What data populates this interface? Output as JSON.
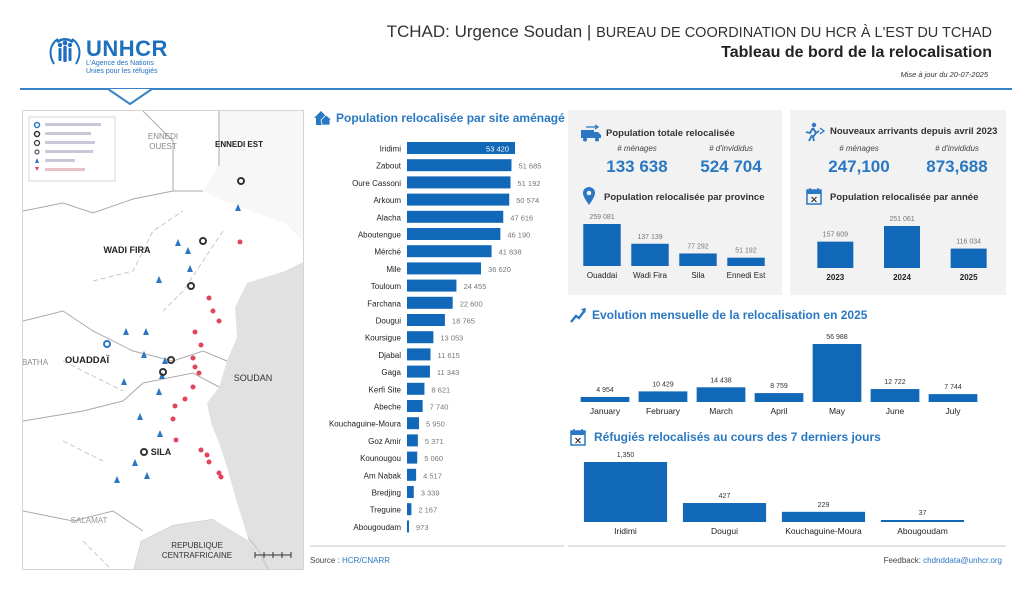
{
  "header": {
    "title_main": "TCHAD: Urgence Soudan",
    "title_sep": " | ",
    "title_sub": "BUREAU DE COORDINATION DU HCR À L'EST DU TCHAD",
    "subtitle": "Tableau de bord de la relocalisation",
    "updated": "Mise à jour du 20-07-2025"
  },
  "logo": {
    "word": "UNHCR",
    "tagline_1": "L'Agence des Nations",
    "tagline_2": "Unies pour les réfugiés"
  },
  "map": {
    "labels": {
      "ennedi_ouest": "ENNEDI OUEST",
      "ennedi_est": "ENNEDI EST",
      "wadi_fira": "WADI FIRA",
      "ouaddai": "OUADDAÏ",
      "batha": "BATHA",
      "soudan": "SOUDAN",
      "sila": "SILA",
      "salamat": "SALAMAT",
      "rca_1": "REPUBLIQUE",
      "rca_2": "CENTRAFRICAINE"
    }
  },
  "colors": {
    "accent": "#2a78c2",
    "bar": "#1167b8",
    "panel": "#f2f2f2",
    "marker": "#e2445c"
  },
  "footer": {
    "source_label": "Source : ",
    "source_value": "HCR/CNARR",
    "feedback_label": "Feedback: ",
    "feedback_value": "chdnddata@unhcr.org"
  },
  "kpis": {
    "total": {
      "title": "Population totale relocalisée",
      "households_label": "# ménages",
      "households": "133 638",
      "individuals_label": "# d'invididus",
      "individuals": "524 704"
    },
    "new_arrivals": {
      "title": "Nouveaux arrivants depuis avril 2023",
      "households_label": "# ménages",
      "households": "247,100",
      "individuals_label": "# d'invididus",
      "individuals": "873,688"
    }
  },
  "chart_data": [
    {
      "id": "by_site",
      "type": "bar",
      "orientation": "horizontal",
      "title": "Population relocalisée par site aménagé",
      "categories": [
        "Iridimi",
        "Zabout",
        "Oure Cassoni",
        "Arkoum",
        "Alacha",
        "Aboutengue",
        "Mérché",
        "Mile",
        "Touloum",
        "Farchana",
        "Dougui",
        "Koursigue",
        "Djabal",
        "Gaga",
        "Kerfi Site",
        "Abeche",
        "Kouchaguine-Moura",
        "Goz Amir",
        "Kounougou",
        "Am Nabak",
        "Bredjing",
        "Treguine",
        "Abougoudam"
      ],
      "values": [
        53420,
        51685,
        51192,
        50574,
        47616,
        46190,
        41838,
        36620,
        24455,
        22600,
        18765,
        13053,
        11615,
        11343,
        8621,
        7740,
        5950,
        5371,
        5060,
        4517,
        3339,
        2167,
        973
      ],
      "labels": [
        "53 420",
        "51 685",
        "51 192",
        "50 574",
        "47 616",
        "46 190",
        "41 838",
        "36 620",
        "24 455",
        "22 600",
        "18 765",
        "13 053",
        "11 615",
        "11 343",
        "8 621",
        "7 740",
        "5 950",
        "5 371",
        "5 060",
        "4 517",
        "3 339",
        "2 167",
        "973"
      ]
    },
    {
      "id": "by_province",
      "type": "bar",
      "title": "Population relocalisée par province",
      "categories": [
        "Ouaddai",
        "Wadi Fira",
        "Sila",
        "Ennedi Est"
      ],
      "values": [
        259081,
        137139,
        77292,
        51192
      ],
      "labels": [
        "259 081",
        "137 139",
        "77 292",
        "51 192"
      ]
    },
    {
      "id": "by_year",
      "type": "bar",
      "title": "Population relocalisée par année",
      "categories": [
        "2023",
        "2024",
        "2025"
      ],
      "values": [
        157609,
        251061,
        116034
      ],
      "labels": [
        "157 609",
        "251 061",
        "116 034"
      ]
    },
    {
      "id": "monthly",
      "type": "bar",
      "title": "Evolution mensuelle de la relocalisation en 2025",
      "categories": [
        "January",
        "February",
        "March",
        "April",
        "May",
        "June",
        "July"
      ],
      "values": [
        4954,
        10429,
        14438,
        8759,
        56988,
        12722,
        7744
      ],
      "labels": [
        "4 954",
        "10 429",
        "14 438",
        "8 759",
        "56 988",
        "12 722",
        "7 744"
      ]
    },
    {
      "id": "last7days",
      "type": "bar",
      "title": "Réfugiés relocalisés au cours des 7 derniers jours",
      "categories": [
        "Iridimi",
        "Dougui",
        "Kouchaguine-Moura",
        "Abougoudam"
      ],
      "values": [
        1350,
        427,
        229,
        37
      ],
      "labels": [
        "1,350",
        "427",
        "229",
        "37"
      ]
    }
  ]
}
